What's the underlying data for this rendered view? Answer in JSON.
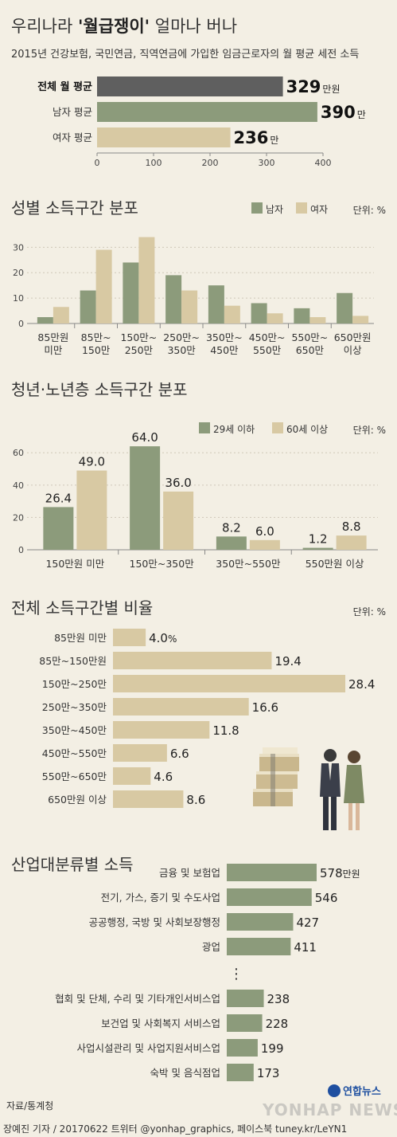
{
  "header": {
    "title_pre": "우리나라 ",
    "title_bold": "'월급쟁이'",
    "title_post": " 얼마나 버나",
    "subtitle": "2015년 건강보험, 국민연금, 직역연금에 가입한 임금근로자의 월 평균 세전 소득"
  },
  "colors": {
    "green": "#8c9b7b",
    "beige": "#d8c9a3",
    "gray": "#5f5f5f",
    "bg": "#f3efe4"
  },
  "chart_data": [
    {
      "type": "bar",
      "orientation": "horizontal",
      "categories": [
        "전체 월 평균",
        "남자 평균",
        "여자 평균"
      ],
      "values": [
        329,
        390,
        236
      ],
      "value_labels": [
        "329",
        "390",
        "236"
      ],
      "unit_labels": [
        "만원",
        "만",
        "만"
      ],
      "xticks": [
        "0",
        "100",
        "200",
        "300",
        "400"
      ],
      "xlim": [
        0,
        420
      ]
    },
    {
      "type": "bar",
      "title": "성별 소득구간 분포",
      "unit": "단위: %",
      "categories": [
        [
          "85만원",
          "미만"
        ],
        [
          "85만~",
          "150만"
        ],
        [
          "150만~",
          "250만"
        ],
        [
          "250만~",
          "350만"
        ],
        [
          "350만~",
          "450만"
        ],
        [
          "450만~",
          "550만"
        ],
        [
          "550만~",
          "650만"
        ],
        [
          "650만원",
          "이상"
        ]
      ],
      "series": [
        {
          "name": "남자",
          "values": [
            2.5,
            13,
            24,
            19,
            15,
            8,
            6,
            12
          ]
        },
        {
          "name": "여자",
          "values": [
            6.5,
            29,
            34,
            13,
            7,
            4,
            2.5,
            3
          ]
        }
      ],
      "yticks": [
        "0",
        "10",
        "20",
        "30"
      ],
      "ylim": [
        0,
        37
      ]
    },
    {
      "type": "bar",
      "title": "청년·노년층 소득구간 분포",
      "unit": "단위: %",
      "categories": [
        "150만원 미만",
        "150만~350만",
        "350만~550만",
        "550만원 이상"
      ],
      "series": [
        {
          "name": "29세 이하",
          "values": [
            26.4,
            64.0,
            8.2,
            1.2
          ],
          "labels": [
            "26.4",
            "64.0",
            "8.2",
            "1.2"
          ]
        },
        {
          "name": "60세 이상",
          "values": [
            49.0,
            36.0,
            6.0,
            8.8
          ],
          "labels": [
            "49.0",
            "36.0",
            "6.0",
            "8.8"
          ]
        }
      ],
      "yticks": [
        "0",
        "20",
        "40",
        "60"
      ],
      "ylim": [
        0,
        68
      ]
    },
    {
      "type": "bar",
      "orientation": "horizontal",
      "title": "전체 소득구간별 비율",
      "unit": "단위: %",
      "categories": [
        "85만원 미만",
        "85만~150만원",
        "150만~250만",
        "250만~350만",
        "350만~450만",
        "450만~550만",
        "550만~650만",
        "650만원 이상"
      ],
      "values": [
        4.0,
        19.4,
        28.4,
        16.6,
        11.8,
        6.6,
        4.6,
        8.6
      ],
      "value_labels": [
        "4.0",
        "19.4",
        "28.4",
        "16.6",
        "11.8",
        "6.6",
        "4.6",
        "8.6"
      ],
      "first_suffix": "%"
    },
    {
      "type": "bar",
      "orientation": "horizontal",
      "title": "산업대분류별 소득",
      "categories": [
        "금융 및 보험업",
        "전기, 가스, 증기 및 수도사업",
        "공공행정, 국방 및 사회보장행정",
        "광업",
        "협회 및 단체, 수리 및 기타개인서비스업",
        "보건업 및 사회복지 서비스업",
        "사업시설관리 및 사업지원서비스업",
        "숙박 및 음식점업"
      ],
      "values": [
        578,
        546,
        427,
        411,
        238,
        228,
        199,
        173
      ],
      "value_labels": [
        "578",
        "546",
        "427",
        "411",
        "238",
        "228",
        "199",
        "173"
      ],
      "first_suffix": "만원",
      "ellipsis": "⋮"
    }
  ],
  "footer": {
    "source": "자료/통계청",
    "credit": "장예진 기자 / 20170622 트위터 @yonhap_graphics, 페이스북 tuney.kr/LeYN1",
    "logo_text": "연합뉴스",
    "watermark": "YONHAP NEWS"
  }
}
